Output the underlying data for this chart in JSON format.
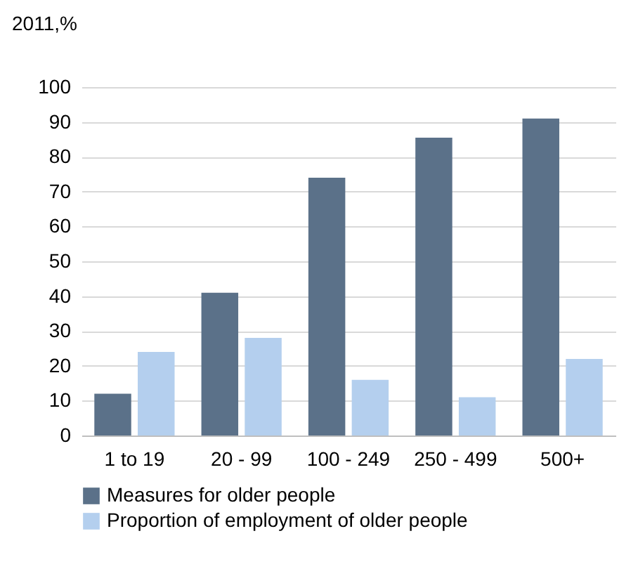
{
  "chart_data": {
    "type": "bar",
    "ylabel": "2011,%",
    "categories": [
      "1 to 19",
      "20 - 99",
      "100 - 249",
      "250 - 499",
      "500+"
    ],
    "series": [
      {
        "name": "Measures for older people",
        "color": "#5b7189",
        "values": [
          12,
          41,
          74,
          85.5,
          91
        ]
      },
      {
        "name": "Proportion of employment of older people",
        "color": "#b4cfee",
        "values": [
          24,
          28,
          16,
          11,
          22
        ]
      }
    ],
    "ylim": [
      0,
      100
    ],
    "yticks": [
      0,
      10,
      20,
      30,
      40,
      50,
      60,
      70,
      80,
      90,
      100
    ],
    "grid": "y",
    "legend": "bottom"
  }
}
